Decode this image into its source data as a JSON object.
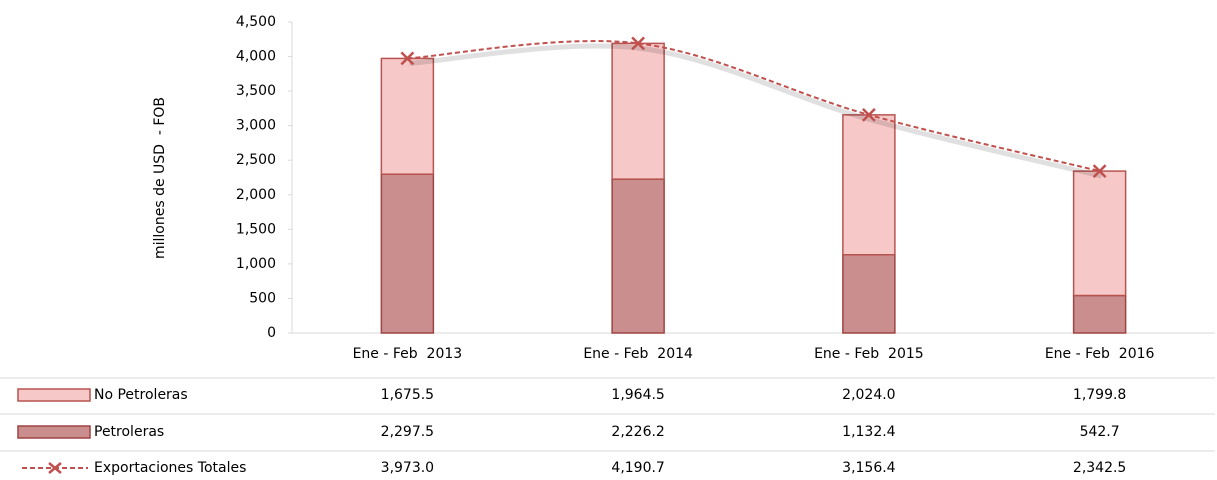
{
  "chart_data": {
    "type": "bar",
    "stacked": true,
    "ylabel": "millones de USD  - FOB",
    "categories": [
      "Ene - Feb  2013",
      "Ene - Feb  2014",
      "Ene - Feb  2015",
      "Ene - Feb  2016"
    ],
    "series": [
      {
        "name": "No Petroleras",
        "color": "#f6c9c8",
        "stroke": "#b85450",
        "values": [
          1675.5,
          1964.5,
          2024.0,
          1799.8
        ],
        "value_labels": [
          "1,675.5",
          "1,964.5",
          "2,024.0",
          "1,799.8"
        ]
      },
      {
        "name": "Petroleras",
        "color": "#c98e8d",
        "stroke": "#a04342",
        "values": [
          2297.5,
          2226.2,
          1132.4,
          542.7
        ],
        "value_labels": [
          "2,297.5",
          "2,226.2",
          "1,132.4",
          "542.7"
        ]
      },
      {
        "name": "Exportaciones Totales",
        "type": "line",
        "color": "#c0504d",
        "values": [
          3973.0,
          4190.7,
          3156.4,
          2342.5
        ],
        "value_labels": [
          "3,973.0",
          "4,190.7",
          "3,156.4",
          "2,342.5"
        ]
      }
    ],
    "ylim": [
      0,
      4500
    ],
    "yticks": [
      0,
      500,
      {
        "value": 1000,
        "label": "1,000"
      },
      {
        "value": 1500,
        "label": "1,500"
      },
      {
        "value": 2000,
        "label": "2,000"
      },
      {
        "value": 2500,
        "label": "2,500"
      },
      {
        "value": 3000,
        "label": "3,000"
      },
      {
        "value": 3500,
        "label": "3,500"
      },
      {
        "value": 4000,
        "label": "4,000"
      },
      {
        "value": 4500,
        "label": "4,500"
      }
    ]
  }
}
